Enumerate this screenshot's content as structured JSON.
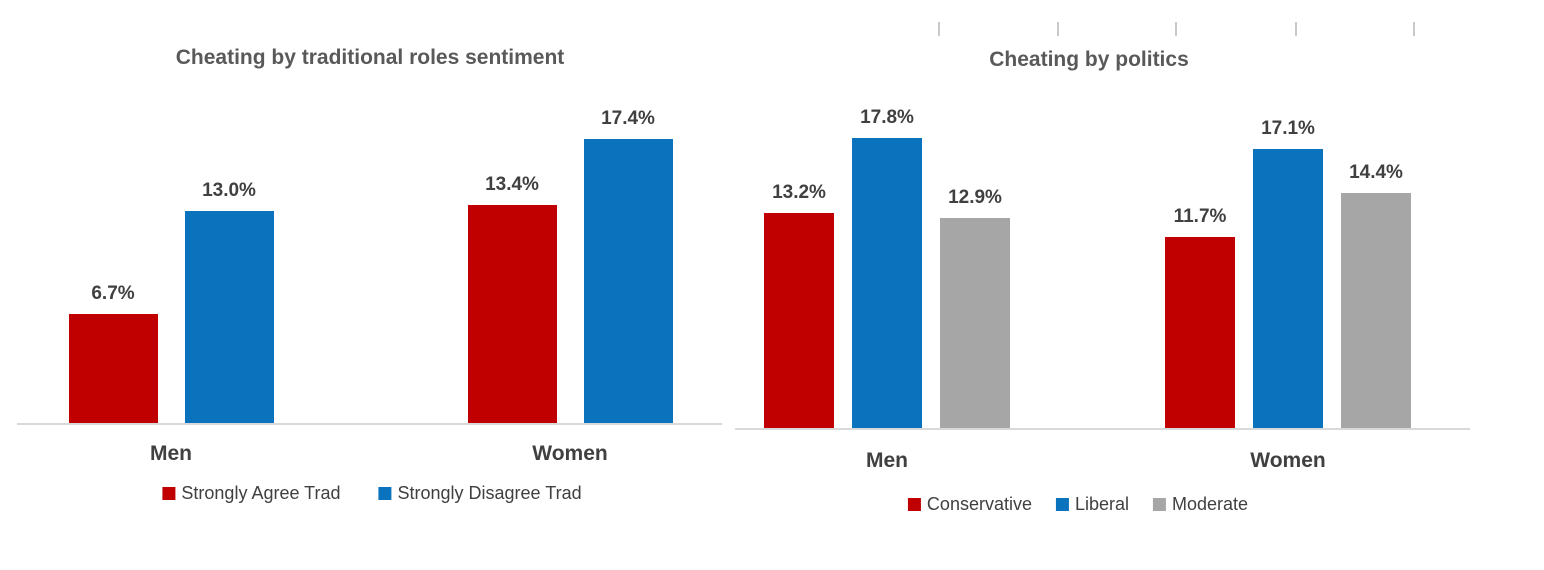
{
  "chart_data": [
    {
      "type": "bar",
      "title": "Cheating by traditional roles sentiment",
      "categories": [
        "Men",
        "Women"
      ],
      "series": [
        {
          "name": "Strongly Agree Trad",
          "color": "#c00000",
          "values": [
            6.7,
            13.4
          ]
        },
        {
          "name": "Strongly Disagree Trad",
          "color": "#0b72be",
          "values": [
            13.0,
            17.4
          ]
        }
      ],
      "value_suffix": "%",
      "data_labels": [
        "6.7%",
        "13.0%",
        "13.4%",
        "17.4%"
      ],
      "ylim": [
        0,
        20
      ],
      "grid": false,
      "legend_position": "bottom"
    },
    {
      "type": "bar",
      "title": "Cheating by politics",
      "categories": [
        "Men",
        "Women"
      ],
      "series": [
        {
          "name": "Conservative",
          "color": "#c00000",
          "values": [
            13.2,
            11.7
          ]
        },
        {
          "name": "Liberal",
          "color": "#0b72be",
          "values": [
            17.8,
            17.1
          ]
        },
        {
          "name": "Moderate",
          "color": "#a6a6a6",
          "values": [
            12.9,
            14.4
          ]
        }
      ],
      "value_suffix": "%",
      "data_labels": [
        "13.2%",
        "17.8%",
        "12.9%",
        "11.7%",
        "17.1%",
        "14.4%"
      ],
      "ylim": [
        0,
        20
      ],
      "grid": false,
      "legend_position": "bottom"
    }
  ],
  "colors": {
    "red": "#c00000",
    "blue": "#0b72be",
    "gray": "#a6a6a6",
    "axis": "#d9d9d9",
    "title_text": "#595959",
    "label_text": "#404040"
  }
}
